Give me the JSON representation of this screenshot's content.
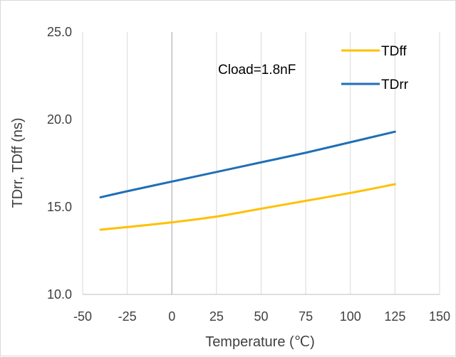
{
  "chart_data": {
    "type": "line",
    "title": "",
    "xlabel": "Temperature (℃)",
    "ylabel": "TDrr, TDff (ns)",
    "xlim": [
      -50,
      150
    ],
    "ylim": [
      10.0,
      25.0
    ],
    "x_ticks": [
      "-50",
      "-25",
      "0",
      "25",
      "50",
      "75",
      "100",
      "125",
      "150"
    ],
    "y_ticks": [
      "10.0",
      "15.0",
      "20.0",
      "25.0"
    ],
    "grid": "vertical",
    "legend_position": "top-right",
    "annotation": "Cload=1.8nF",
    "series": [
      {
        "name": "TDff",
        "color": "#FFC000",
        "x": [
          -40,
          -25,
          0,
          25,
          50,
          75,
          100,
          125
        ],
        "y": [
          13.7,
          13.85,
          14.12,
          14.45,
          14.9,
          15.35,
          15.8,
          16.3
        ]
      },
      {
        "name": "TDrr",
        "color": "#1F6FB5",
        "x": [
          -40,
          -25,
          0,
          25,
          50,
          75,
          100,
          125
        ],
        "y": [
          15.55,
          15.9,
          16.45,
          17.0,
          17.55,
          18.1,
          18.7,
          19.3
        ]
      }
    ]
  }
}
